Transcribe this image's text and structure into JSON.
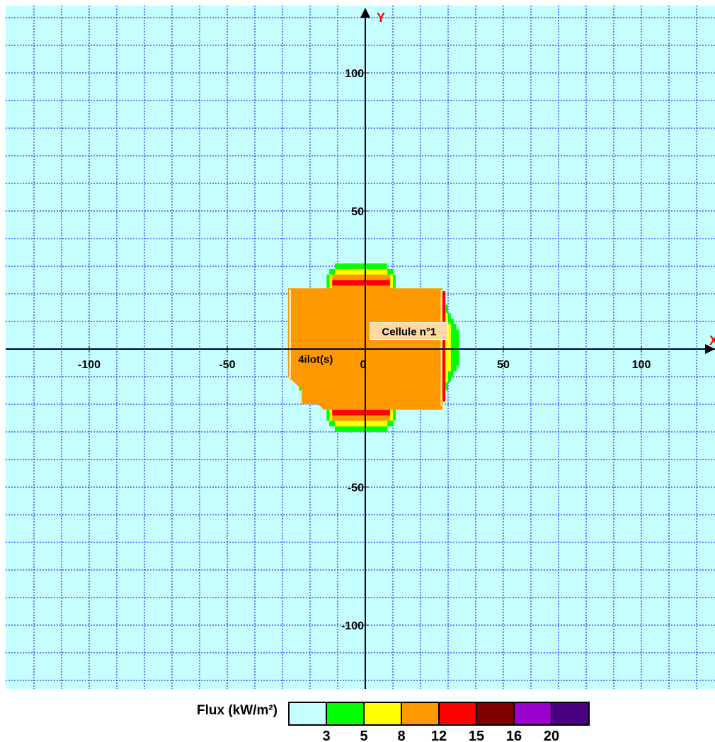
{
  "chart_data": {
    "type": "heatmap",
    "title": "",
    "x_axis_label": "X",
    "y_axis_label": "Y",
    "x_range": [
      -129,
      129
    ],
    "y_range": [
      -123,
      124
    ],
    "x_ticks": [
      -100,
      -50,
      0,
      50,
      100
    ],
    "y_ticks": [
      100,
      50,
      -50,
      -100
    ],
    "grid": true,
    "grid_spacing": 10,
    "colors": {
      "background": "#c6ffff",
      "grid": "#0000ff",
      "axis": "#000033",
      "axis_letter": "#ff0000",
      "label_box": "#ffd9a0",
      "label_box_border": "#ffffff"
    },
    "annotations": [
      {
        "text": "Cellule n°1",
        "x": 12,
        "y": 6.5
      },
      {
        "text": "4ilot(s)",
        "x": -18,
        "y": -3.5
      }
    ],
    "zones": [
      {
        "flux_min": 3,
        "color": "#00ff00",
        "polygon": [
          [
            -28,
            7
          ],
          [
            -27,
            7
          ],
          [
            -27,
            9
          ],
          [
            -26,
            9
          ],
          [
            -26,
            11
          ],
          [
            -25,
            11
          ],
          [
            -25,
            13
          ],
          [
            -24,
            13
          ],
          [
            -24,
            16
          ],
          [
            -23,
            16
          ],
          [
            -23,
            21
          ],
          [
            -14,
            21
          ],
          [
            -14,
            27
          ],
          [
            -13,
            27
          ],
          [
            -13,
            29
          ],
          [
            -11,
            29
          ],
          [
            -11,
            31
          ],
          [
            8,
            31
          ],
          [
            8,
            29
          ],
          [
            10,
            29
          ],
          [
            10,
            27
          ],
          [
            11,
            27
          ],
          [
            11,
            21
          ],
          [
            29,
            21
          ],
          [
            29,
            16
          ],
          [
            30,
            16
          ],
          [
            30,
            13
          ],
          [
            31,
            13
          ],
          [
            31,
            11
          ],
          [
            32,
            11
          ],
          [
            32,
            9
          ],
          [
            33,
            9
          ],
          [
            33,
            7
          ],
          [
            34,
            7
          ],
          [
            34,
            -6
          ],
          [
            33,
            -6
          ],
          [
            33,
            -8
          ],
          [
            32,
            -8
          ],
          [
            32,
            -10
          ],
          [
            31,
            -10
          ],
          [
            31,
            -12
          ],
          [
            30,
            -12
          ],
          [
            30,
            -15
          ],
          [
            29,
            -15
          ],
          [
            29,
            -20
          ],
          [
            11,
            -20
          ],
          [
            11,
            -26
          ],
          [
            10,
            -26
          ],
          [
            10,
            -28
          ],
          [
            8,
            -28
          ],
          [
            8,
            -30
          ],
          [
            -11,
            -30
          ],
          [
            -11,
            -28
          ],
          [
            -13,
            -28
          ],
          [
            -13,
            -26
          ],
          [
            -14,
            -26
          ],
          [
            -14,
            -20
          ],
          [
            -23,
            -20
          ],
          [
            -23,
            -15
          ],
          [
            -24,
            -15
          ],
          [
            -24,
            -12
          ],
          [
            -25,
            -12
          ],
          [
            -25,
            -10
          ],
          [
            -26,
            -10
          ],
          [
            -26,
            -8
          ],
          [
            -27,
            -8
          ],
          [
            -27,
            -6
          ],
          [
            -28,
            -6
          ]
        ]
      },
      {
        "flux_min": 5,
        "color": "#ffff00",
        "polygon": [
          [
            -25,
            9
          ],
          [
            -24,
            9
          ],
          [
            -24,
            13
          ],
          [
            -23,
            13
          ],
          [
            -23,
            21
          ],
          [
            -13,
            21
          ],
          [
            -13,
            27
          ],
          [
            -11,
            27
          ],
          [
            -11,
            29
          ],
          [
            8,
            29
          ],
          [
            8,
            27
          ],
          [
            10,
            27
          ],
          [
            10,
            21
          ],
          [
            29,
            21
          ],
          [
            29,
            13
          ],
          [
            30,
            13
          ],
          [
            30,
            9
          ],
          [
            31,
            9
          ],
          [
            31,
            -8
          ],
          [
            30,
            -8
          ],
          [
            30,
            -12
          ],
          [
            29,
            -12
          ],
          [
            29,
            -20
          ],
          [
            10,
            -20
          ],
          [
            10,
            -26
          ],
          [
            8,
            -26
          ],
          [
            8,
            -28
          ],
          [
            -11,
            -28
          ],
          [
            -11,
            -26
          ],
          [
            -13,
            -26
          ],
          [
            -13,
            -20
          ],
          [
            -23,
            -20
          ],
          [
            -23,
            -12
          ],
          [
            -24,
            -12
          ],
          [
            -24,
            -8
          ],
          [
            -25,
            -8
          ]
        ]
      },
      {
        "flux_min": 8,
        "color": "#ff9900",
        "polygon": [
          [
            -24,
            11
          ],
          [
            -23,
            11
          ],
          [
            -23,
            21
          ],
          [
            -12,
            21
          ],
          [
            -12,
            27
          ],
          [
            9,
            27
          ],
          [
            9,
            21
          ],
          [
            28,
            21
          ],
          [
            28,
            11
          ],
          [
            29,
            11
          ],
          [
            29,
            -10
          ],
          [
            28,
            -10
          ],
          [
            28,
            -20
          ],
          [
            9,
            -20
          ],
          [
            9,
            -26
          ],
          [
            -12,
            -26
          ],
          [
            -12,
            -20
          ],
          [
            -23,
            -20
          ],
          [
            -23,
            -10
          ],
          [
            -24,
            -10
          ]
        ]
      },
      {
        "flux_min": 12,
        "color": "#ff0000",
        "polygon": [
          [
            -24,
            12
          ],
          [
            -23,
            12
          ],
          [
            -23,
            -10
          ],
          [
            -24,
            -10
          ]
        ]
      },
      {
        "flux_min": 12,
        "color": "#ff0000",
        "polygon": [
          [
            27,
            21
          ],
          [
            29,
            21
          ],
          [
            29,
            -19
          ],
          [
            27,
            -19
          ]
        ]
      },
      {
        "flux_min": 12,
        "color": "#ff0000",
        "polygon": [
          [
            -12,
            25
          ],
          [
            9,
            25
          ],
          [
            9,
            23
          ],
          [
            -12,
            23
          ]
        ]
      },
      {
        "flux_min": 12,
        "color": "#ff0000",
        "polygon": [
          [
            -12,
            -22
          ],
          [
            9,
            -22
          ],
          [
            9,
            -24
          ],
          [
            -12,
            -24
          ]
        ]
      },
      {
        "flux_min": 0,
        "color": "#ff9900",
        "polygon": [
          [
            -28,
            22
          ],
          [
            28,
            22
          ],
          [
            28,
            -22
          ],
          [
            -15,
            -22
          ],
          [
            -28,
            -10
          ]
        ]
      }
    ],
    "legend": {
      "title": "Flux (kW/m²)",
      "placement": "bottom",
      "colors": [
        "#c6ffff",
        "#00ff00",
        "#ffff00",
        "#ff9900",
        "#ff0000",
        "#800000",
        "#9900cc",
        "#4b0082"
      ],
      "thresholds": [
        "3",
        "5",
        "8",
        "12",
        "15",
        "16",
        "20"
      ]
    }
  }
}
